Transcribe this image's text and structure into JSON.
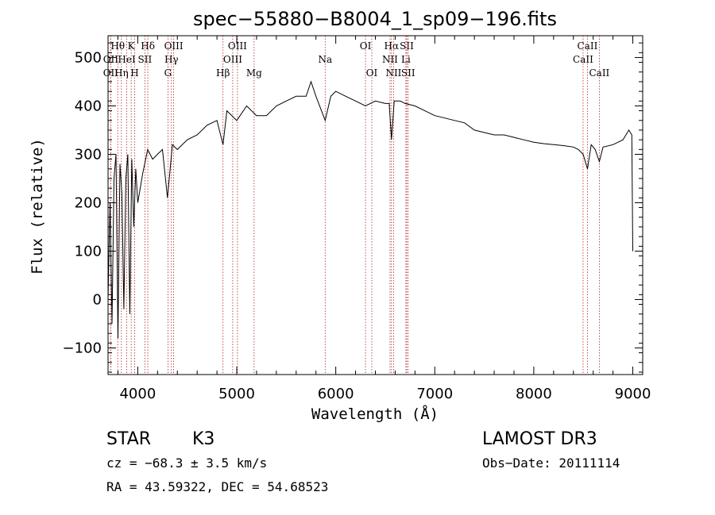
{
  "chart_data": {
    "type": "line",
    "title": "spec−55880−B8004_1_sp09−196.fits",
    "xlabel": "Wavelength (Å)",
    "ylabel": "Flux (relative)",
    "xlim": [
      3700,
      9100
    ],
    "ylim": [
      -155,
      545
    ],
    "xticks": [
      4000,
      5000,
      6000,
      7000,
      8000,
      9000
    ],
    "xtick_labels": [
      "4000",
      "5000",
      "6000",
      "7000",
      "8000",
      "9000"
    ],
    "yticks": [
      -100,
      0,
      100,
      200,
      300,
      400,
      500
    ],
    "ytick_labels": [
      "−100",
      "0",
      "100",
      "200",
      "300",
      "400",
      "500"
    ],
    "series": [
      {
        "name": "flux",
        "x": [
          3700,
          3720,
          3740,
          3760,
          3780,
          3800,
          3820,
          3840,
          3860,
          3880,
          3900,
          3920,
          3940,
          3960,
          3980,
          4000,
          4050,
          4100,
          4150,
          4200,
          4250,
          4300,
          4350,
          4400,
          4500,
          4600,
          4700,
          4800,
          4861,
          4900,
          5000,
          5100,
          5200,
          5300,
          5400,
          5500,
          5600,
          5700,
          5750,
          5800,
          5893,
          5950,
          6000,
          6100,
          6200,
          6300,
          6400,
          6500,
          6540,
          6563,
          6590,
          6650,
          6700,
          6800,
          6900,
          7000,
          7100,
          7200,
          7300,
          7400,
          7500,
          7600,
          7700,
          7800,
          7900,
          8000,
          8100,
          8200,
          8300,
          8400,
          8450,
          8498,
          8542,
          8580,
          8620,
          8662,
          8700,
          8800,
          8900,
          8960,
          8990,
          9000
        ],
        "y": [
          0,
          200,
          -50,
          250,
          300,
          -80,
          280,
          220,
          -20,
          250,
          300,
          -30,
          290,
          150,
          270,
          200,
          260,
          310,
          290,
          300,
          310,
          210,
          320,
          310,
          330,
          340,
          360,
          370,
          320,
          390,
          370,
          400,
          380,
          380,
          400,
          410,
          420,
          420,
          450,
          420,
          370,
          420,
          430,
          420,
          410,
          400,
          410,
          405,
          405,
          330,
          410,
          410,
          405,
          400,
          390,
          380,
          375,
          370,
          365,
          350,
          345,
          340,
          340,
          335,
          330,
          325,
          322,
          320,
          318,
          315,
          310,
          300,
          270,
          320,
          310,
          285,
          315,
          320,
          330,
          350,
          340,
          100
        ]
      }
    ],
    "spectral_lines": [
      {
        "label": "Hθ",
        "x": 3798,
        "row": 1
      },
      {
        "label": "OII",
        "x": 3727,
        "row": 2
      },
      {
        "label": "OII",
        "x": 3727,
        "row": 3
      },
      {
        "label": "Hη",
        "x": 3835,
        "row": 3
      },
      {
        "label": "K",
        "x": 3934,
        "row": 1
      },
      {
        "label": "HeI",
        "x": 3889,
        "row": 2
      },
      {
        "label": "SII",
        "x": 4072,
        "row": 2
      },
      {
        "label": "H",
        "x": 3969,
        "row": 3
      },
      {
        "label": "Hδ",
        "x": 4102,
        "row": 1
      },
      {
        "label": "OIII",
        "x": 4363,
        "row": 1
      },
      {
        "label": "Hγ",
        "x": 4340,
        "row": 2
      },
      {
        "label": "G",
        "x": 4305,
        "row": 3
      },
      {
        "label": "Hβ",
        "x": 4861,
        "row": 3
      },
      {
        "label": "OIII",
        "x": 5007,
        "row": 1
      },
      {
        "label": "OIII",
        "x": 4959,
        "row": 2
      },
      {
        "label": "Mg",
        "x": 5175,
        "row": 3
      },
      {
        "label": "Na",
        "x": 5893,
        "row": 2
      },
      {
        "label": "OI",
        "x": 6300,
        "row": 1
      },
      {
        "label": "OI",
        "x": 6364,
        "row": 3
      },
      {
        "label": "Hα",
        "x": 6563,
        "row": 1
      },
      {
        "label": "SII",
        "x": 6717,
        "row": 1
      },
      {
        "label": "NII",
        "x": 6548,
        "row": 2
      },
      {
        "label": "Li",
        "x": 6708,
        "row": 2
      },
      {
        "label": "NII",
        "x": 6584,
        "row": 3
      },
      {
        "label": "SII",
        "x": 6731,
        "row": 3
      },
      {
        "label": "CaII",
        "x": 8542,
        "row": 1
      },
      {
        "label": "CaII",
        "x": 8498,
        "row": 2
      },
      {
        "label": "CaII",
        "x": 8662,
        "row": 3
      }
    ]
  },
  "info": {
    "class_label": "STAR",
    "subclass": "K3",
    "survey": "LAMOST DR3",
    "cz": "cz = −68.3 ± 3.5 km/s",
    "obs_date": "Obs−Date: 20111114",
    "radec": "RA =  43.59322, DEC =  54.68523"
  },
  "colors": {
    "spectrum": "#000000",
    "line_marker": "#b22222",
    "axes": "#000000"
  }
}
